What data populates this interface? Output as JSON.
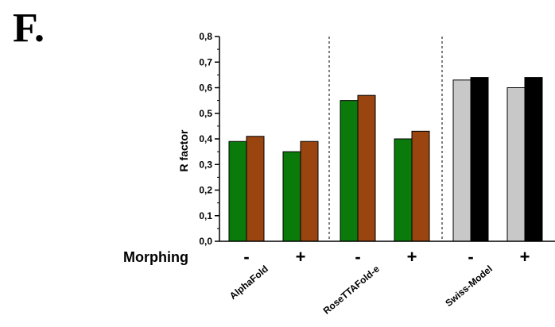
{
  "panel_label": "F.",
  "chart_data": {
    "type": "bar",
    "ylabel": "R factor",
    "ylim": [
      0,
      0.8
    ],
    "y_ticks": [
      "0,0",
      "0,1",
      "0,2",
      "0,3",
      "0,4",
      "0,5",
      "0,6",
      "0,7",
      "0,8"
    ],
    "row_label": "Morphing",
    "groups": [
      {
        "name": "AlphaFold",
        "conditions": [
          {
            "morphing": "-",
            "values": [
              0.39,
              0.41
            ]
          },
          {
            "morphing": "+",
            "values": [
              0.35,
              0.39
            ]
          }
        ]
      },
      {
        "name": "RoseTTAFold-e",
        "conditions": [
          {
            "morphing": "-",
            "values": [
              0.55,
              0.57
            ]
          },
          {
            "morphing": "+",
            "values": [
              0.4,
              0.43
            ]
          }
        ]
      },
      {
        "name": "Swiss-Model",
        "conditions": [
          {
            "morphing": "-",
            "values": [
              0.63,
              0.64
            ]
          },
          {
            "morphing": "+",
            "values": [
              0.6,
              0.64
            ]
          }
        ]
      }
    ],
    "bar_colors": [
      [
        "#0a7a0a",
        "#9a4410"
      ],
      [
        "#0a7a0a",
        "#9a4410"
      ],
      [
        "#c8c8c8",
        "#000000"
      ]
    ],
    "grid": false,
    "group_separators": "dashed vertical lines"
  }
}
